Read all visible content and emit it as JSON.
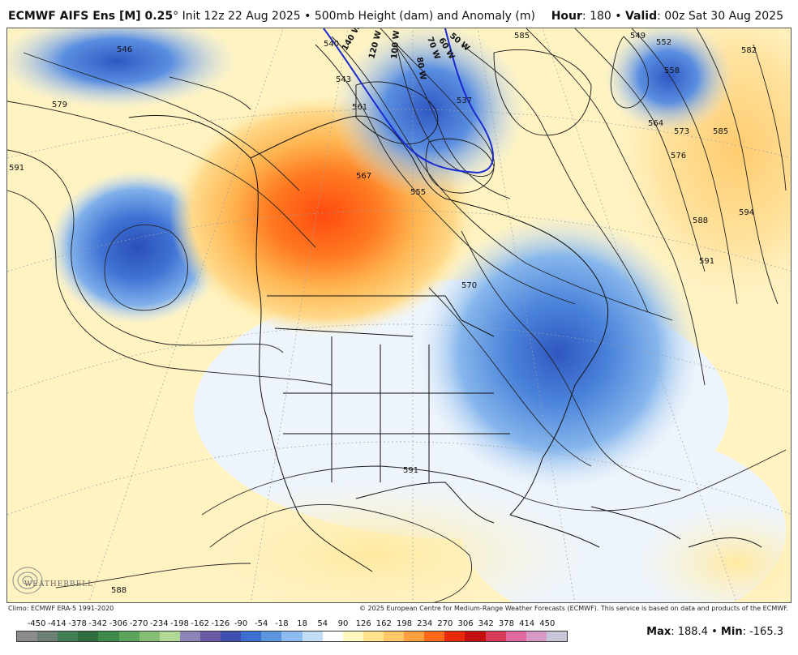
{
  "header": {
    "model": "ECMWF AIFS Ens [M] 0.25",
    "degree": "°",
    "init": "Init 12z 22 Aug 2025",
    "separator": "•",
    "field": "500mb Height (dam) and Anomaly (m)",
    "hour_label": "Hour",
    "hour_value": ": 180",
    "valid_label": "Valid",
    "valid_value": ": 00z Sat 30 Aug 2025",
    "bullet": " • "
  },
  "footer": {
    "climo": "Climo: ECMWF ERA-5 1991-2020",
    "copyright": "© 2025 European Centre for Medium-Range Weather Forecasts (ECMWF). This service is based on data and products of the ECMWF."
  },
  "logo": {
    "text": "WEATHERBELL"
  },
  "colorbar": {
    "ticks": [
      "-450",
      "-414",
      "-378",
      "-342",
      "-306",
      "-270",
      "-234",
      "-198",
      "-162",
      "-126",
      "-90",
      "-54",
      "-18",
      "18",
      "54",
      "90",
      "126",
      "162",
      "198",
      "234",
      "270",
      "306",
      "342",
      "378",
      "414",
      "450"
    ],
    "colors": [
      "#8c8c8c",
      "#6b7f74",
      "#3f7d55",
      "#2e6b3d",
      "#3e8a4a",
      "#5aa45c",
      "#84bf74",
      "#b2d896",
      "#8f84b8",
      "#6a5aa6",
      "#3f4fb0",
      "#3c6fd0",
      "#5a97e0",
      "#8cbcf0",
      "#c2dcf6",
      "#ffffff",
      "#fff6c0",
      "#ffe48a",
      "#ffc766",
      "#ffa040",
      "#ff6a1a",
      "#e62a0a",
      "#c4100e",
      "#d83a5a",
      "#e06aa0",
      "#d89ac4",
      "#c6c6d8"
    ]
  },
  "stats": {
    "max_label": "Max",
    "max_value": ": 188.4",
    "min_label": "Min",
    "min_value": ": -165.3",
    "sep": " • "
  },
  "contour_labels": [
    "546",
    "579",
    "591",
    "540",
    "543",
    "549",
    "552",
    "558",
    "564",
    "573",
    "576",
    "582",
    "585",
    "594",
    "588",
    "591",
    "570",
    "561",
    "567",
    "555",
    "537",
    "585",
    "591",
    "588"
  ],
  "wind_labels": [
    "140 W",
    "120 W",
    "100 W",
    "80 W",
    "70 W",
    "60 W",
    "50 W"
  ]
}
